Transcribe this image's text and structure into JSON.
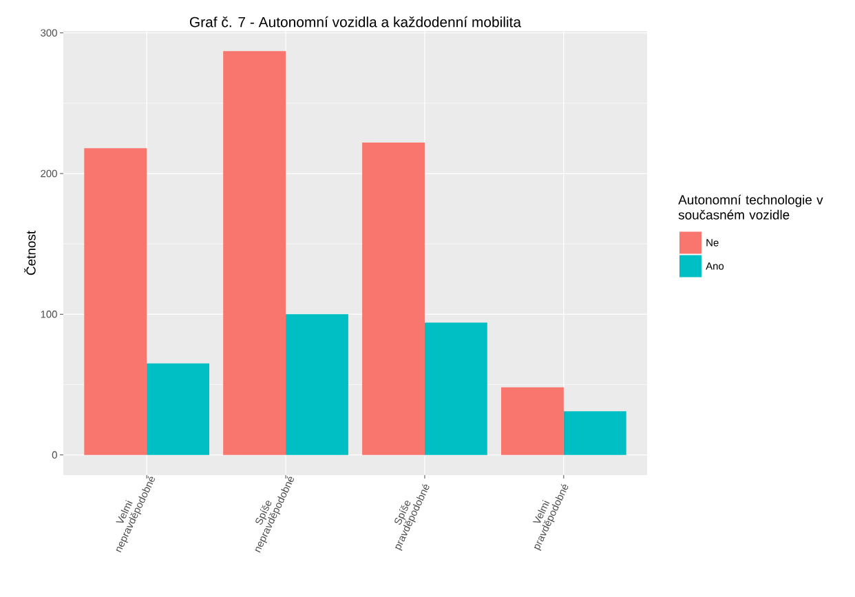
{
  "chart_data": {
    "type": "bar",
    "title": "Graf č. 7 - Autonomní vozidla a každodenní mobilita",
    "ylabel": "Četnost",
    "legend_title": "Autonomní technologie v současném vozidle",
    "categories": [
      "Velmi nepravděpodobné",
      "Spíše nepravděpodobné",
      "Spíše pravděpodobné",
      "Velmi pravděpodobné"
    ],
    "series": [
      {
        "name": "Ne",
        "color": "#f8766d",
        "values": [
          218,
          287,
          222,
          48
        ]
      },
      {
        "name": "Ano",
        "color": "#00bfc4",
        "values": [
          65,
          100,
          94,
          31
        ]
      }
    ],
    "ylim": [
      -14.35,
      301.35
    ],
    "yticks": [
      0,
      {
        "value": 50,
        "label": null
      },
      100,
      {
        "value": 150,
        "label": null
      },
      200,
      {
        "value": 250,
        "label": null
      },
      300
    ],
    "grid": true,
    "legend": "right"
  }
}
